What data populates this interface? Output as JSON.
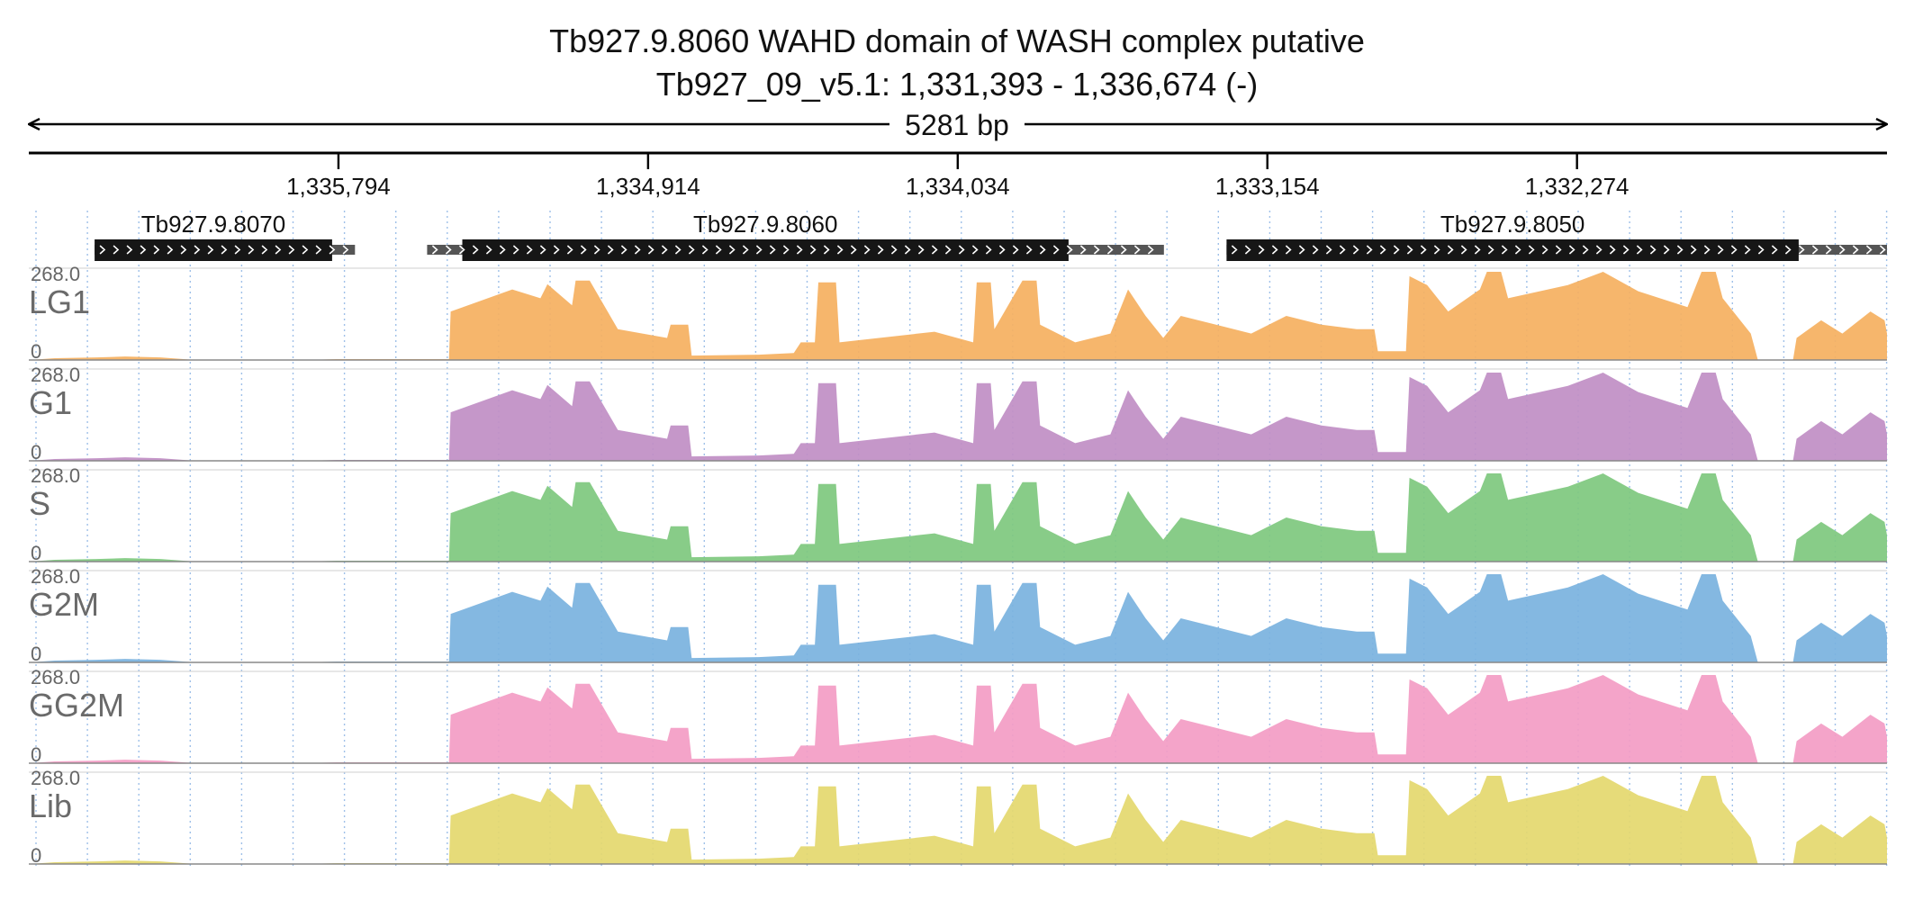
{
  "header": {
    "title": "Tb927.9.8060  WAHD domain of WASH complex  putative",
    "locus": "Tb927_09_v5.1: 1,331,393 - 1,336,674 (-)",
    "span_label": "5281 bp"
  },
  "axis": {
    "start": 1336674,
    "end": 1331393,
    "ticks": [
      {
        "pos": 1335794,
        "label": "1,335,794"
      },
      {
        "pos": 1334914,
        "label": "1,334,914"
      },
      {
        "pos": 1334034,
        "label": "1,334,034"
      },
      {
        "pos": 1333154,
        "label": "1,333,154"
      },
      {
        "pos": 1332274,
        "label": "1,332,274"
      }
    ]
  },
  "genes": [
    {
      "name": "Tb927.9.8070",
      "utr_start": 1336487,
      "cds_start": 1336487,
      "cds_end": 1335812,
      "utr_end": 1335747
    },
    {
      "name": "Tb927.9.8060",
      "utr_start": 1335542,
      "cds_start": 1335442,
      "cds_end": 1333719,
      "utr_end": 1333448
    },
    {
      "name": "Tb927.9.8050",
      "utr_start": 1333270,
      "cds_start": 1333270,
      "cds_end": 1331644,
      "utr_end": 1331393
    }
  ],
  "tracks": [
    {
      "name": "LG1",
      "max": "268.0",
      "min": "0",
      "color": "#f5b060"
    },
    {
      "name": "G1",
      "max": "268.0",
      "min": "0",
      "color": "#c08ec4"
    },
    {
      "name": "S",
      "max": "268.0",
      "min": "0",
      "color": "#7ec87e"
    },
    {
      "name": "G2M",
      "max": "268.0",
      "min": "0",
      "color": "#7ab2de"
    },
    {
      "name": "GG2M",
      "max": "268.0",
      "min": "0",
      "color": "#f39cc4"
    },
    {
      "name": "Lib",
      "max": "268.0",
      "min": "0",
      "color": "#e4d86e"
    }
  ],
  "coverage_profile": [
    [
      1336674,
      0.0
    ],
    [
      1336600,
      0.02
    ],
    [
      1336480,
      0.03
    ],
    [
      1336400,
      0.04
    ],
    [
      1336300,
      0.03
    ],
    [
      1336200,
      0.0
    ],
    [
      1335880,
      0.0
    ],
    [
      1335800,
      0.01
    ],
    [
      1335700,
      0.01
    ],
    [
      1335600,
      0.01
    ],
    [
      1335480,
      0.01
    ],
    [
      1335475,
      0.55
    ],
    [
      1335300,
      0.8
    ],
    [
      1335220,
      0.7
    ],
    [
      1335200,
      0.86
    ],
    [
      1335130,
      0.62
    ],
    [
      1335120,
      0.9
    ],
    [
      1335080,
      0.9
    ],
    [
      1335000,
      0.35
    ],
    [
      1334860,
      0.25
    ],
    [
      1334850,
      0.4
    ],
    [
      1334800,
      0.4
    ],
    [
      1334790,
      0.05
    ],
    [
      1334600,
      0.06
    ],
    [
      1334500,
      0.08
    ],
    [
      1334480,
      0.2
    ],
    [
      1334440,
      0.2
    ],
    [
      1334430,
      0.88
    ],
    [
      1334380,
      0.88
    ],
    [
      1334370,
      0.2
    ],
    [
      1334100,
      0.32
    ],
    [
      1333990,
      0.2
    ],
    [
      1333980,
      0.88
    ],
    [
      1333940,
      0.88
    ],
    [
      1333930,
      0.35
    ],
    [
      1333850,
      0.9
    ],
    [
      1333810,
      0.9
    ],
    [
      1333800,
      0.4
    ],
    [
      1333700,
      0.2
    ],
    [
      1333650,
      0.25
    ],
    [
      1333600,
      0.3
    ],
    [
      1333550,
      0.8
    ],
    [
      1333500,
      0.5
    ],
    [
      1333450,
      0.25
    ],
    [
      1333400,
      0.5
    ],
    [
      1333300,
      0.4
    ],
    [
      1333200,
      0.3
    ],
    [
      1333100,
      0.5
    ],
    [
      1333000,
      0.4
    ],
    [
      1332900,
      0.35
    ],
    [
      1332850,
      0.35
    ],
    [
      1332840,
      0.1
    ],
    [
      1332760,
      0.1
    ],
    [
      1332750,
      0.95
    ],
    [
      1332700,
      0.85
    ],
    [
      1332640,
      0.55
    ],
    [
      1332550,
      0.8
    ],
    [
      1332530,
      1.0
    ],
    [
      1332490,
      1.0
    ],
    [
      1332470,
      0.7
    ],
    [
      1332300,
      0.85
    ],
    [
      1332200,
      1.0
    ],
    [
      1332100,
      0.78
    ],
    [
      1331960,
      0.6
    ],
    [
      1331920,
      1.0
    ],
    [
      1331880,
      1.0
    ],
    [
      1331860,
      0.7
    ],
    [
      1331780,
      0.3
    ],
    [
      1331760,
      0.0
    ],
    [
      1331660,
      0.0
    ],
    [
      1331650,
      0.25
    ],
    [
      1331580,
      0.45
    ],
    [
      1331520,
      0.3
    ],
    [
      1331440,
      0.55
    ],
    [
      1331400,
      0.45
    ],
    [
      1331393,
      0.3
    ]
  ]
}
